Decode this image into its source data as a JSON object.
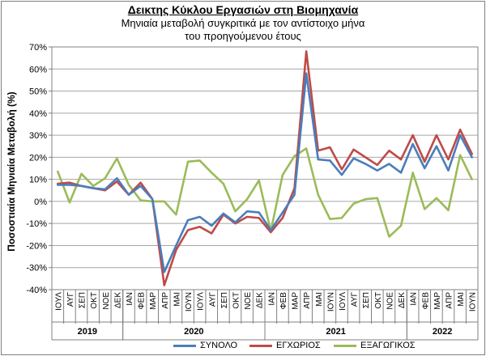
{
  "chart_data": {
    "type": "line",
    "title": "Δεικτης Κύκλου Εργασιών στη Βιομηχανία",
    "subtitle": [
      "Μηνιαία μεταβολή συγκριτικά με τον αντίστοιχο μήνα",
      "του προηγούμενου έτους"
    ],
    "ylabel": "Ποσοστιαία Μηνιαία Μεταβολή (%)",
    "xlabel": "",
    "ylim": [
      -40,
      70
    ],
    "yticks": [
      -40,
      -30,
      -20,
      -10,
      0,
      10,
      20,
      30,
      40,
      50,
      60,
      70
    ],
    "ytick_labels": [
      "-40%",
      "-30%",
      "-20%",
      "-10%",
      "0%",
      "10%",
      "20%",
      "30%",
      "40%",
      "50%",
      "60%",
      "70%"
    ],
    "grid": true,
    "legend": "bottom",
    "categories": [
      "ΙΟΥΛ",
      "ΑΥΓ",
      "ΣΕΠ",
      "ΟΚΤ",
      "ΝΟΕ",
      "ΔΕΚ",
      "ΙΑΝ",
      "ΦΕΒ",
      "ΜΑΡ",
      "ΑΠΡ",
      "ΜΑΙ",
      "ΙΟΥΝ",
      "ΙΟΥΛ",
      "ΑΥΓ",
      "ΣΕΠ",
      "ΟΚΤ",
      "ΝΟΕ",
      "ΔΕΚ",
      "ΙΑΝ",
      "ΦΕΒ",
      "ΜΑΡ",
      "ΑΠΡ",
      "ΜΑΙ",
      "ΙΟΥΝ",
      "ΙΟΥΛ",
      "ΑΥΓ",
      "ΣΕΠ",
      "ΟΚΤ",
      "ΝΟΕ",
      "ΔΕΚ",
      "ΙΑΝ",
      "ΦΕΒ",
      "ΜΑΡ",
      "ΑΠΡ",
      "ΜΑΙ",
      "ΙΟΥΝ"
    ],
    "year_groups": [
      {
        "label": "2019",
        "count": 6
      },
      {
        "label": "2020",
        "count": 12
      },
      {
        "label": "2021",
        "count": 12
      },
      {
        "label": "2022",
        "count": 6
      }
    ],
    "series": [
      {
        "name": "ΣΥΝΟΛΟ",
        "color": "#4a7ebb",
        "values": [
          7.5,
          7.5,
          7,
          6,
          5.5,
          10.5,
          3,
          7,
          1,
          -32,
          -20,
          -8.5,
          -7,
          -11,
          -5.5,
          -9.5,
          -4.5,
          -5,
          -13,
          -5,
          3,
          58,
          19,
          18.5,
          12,
          19.5,
          17,
          14,
          17,
          13,
          26,
          15,
          25,
          14,
          30,
          20
        ]
      },
      {
        "name": "ΕΓΧΩΡΙΟΣ",
        "color": "#be4b48",
        "values": [
          8,
          8.5,
          7,
          6,
          5,
          9,
          3,
          8.5,
          1,
          -38,
          -22,
          -13,
          -11.5,
          -14.5,
          -6,
          -10,
          -7,
          -7.5,
          -14,
          -7.5,
          6,
          68,
          23,
          24.5,
          14.5,
          23.5,
          20,
          16.5,
          23,
          19,
          30,
          18,
          30,
          19,
          32.5,
          21.5
        ]
      },
      {
        "name": "ΕΞΑΓΩΓΙΚΟΣ",
        "color": "#9bbb59",
        "values": [
          13.5,
          -0.5,
          12.5,
          7,
          10.5,
          19.5,
          7.5,
          0.5,
          0,
          0,
          -6,
          18,
          18.5,
          13,
          8,
          -4.5,
          1,
          9.5,
          -13.5,
          12,
          20.5,
          24,
          3,
          -8,
          -7.5,
          -1,
          1,
          1.5,
          -16,
          -11,
          13,
          -3.5,
          1.5,
          -4,
          21,
          10
        ]
      }
    ]
  }
}
